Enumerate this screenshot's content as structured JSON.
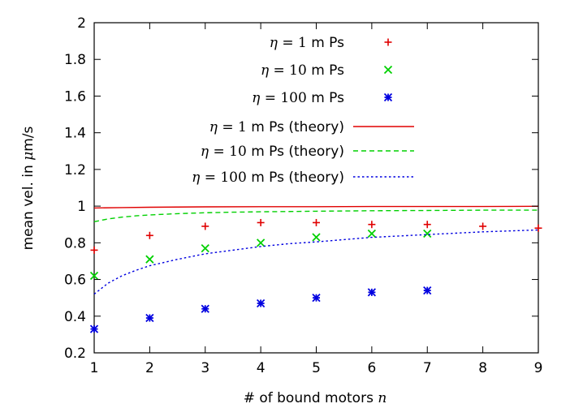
{
  "chart_data": {
    "type": "scatter",
    "xlabel": "# of bound motors n",
    "ylabel": "mean vel. in μm/s",
    "xlim": [
      1,
      9
    ],
    "ylim": [
      0.2,
      2
    ],
    "xticks": [
      1,
      2,
      3,
      4,
      5,
      6,
      7,
      8,
      9
    ],
    "yticks": [
      0.2,
      0.4,
      0.6,
      0.8,
      1,
      1.2,
      1.4,
      1.6,
      1.8,
      2
    ],
    "grid": false,
    "legend_position": "top-right",
    "colors": {
      "eta1": "#e00000",
      "eta10": "#00d000",
      "eta100": "#0000e0",
      "axis": "#000000"
    },
    "series": [
      {
        "name": "η = 1 m Ps",
        "kind": "points",
        "marker": "plus",
        "color": "#e00000",
        "x": [
          1,
          2,
          3,
          4,
          5,
          6,
          7,
          8,
          9
        ],
        "y": [
          0.76,
          0.84,
          0.89,
          0.91,
          0.91,
          0.9,
          0.9,
          0.89,
          0.88
        ]
      },
      {
        "name": "η = 10 m Ps",
        "kind": "points",
        "marker": "cross",
        "color": "#00d000",
        "x": [
          1,
          2,
          3,
          4,
          5,
          6,
          7
        ],
        "y": [
          0.62,
          0.71,
          0.77,
          0.8,
          0.83,
          0.85,
          0.85
        ]
      },
      {
        "name": "η = 100 m Ps",
        "kind": "points",
        "marker": "star",
        "color": "#0000e0",
        "x": [
          1,
          2,
          3,
          4,
          5,
          6,
          7
        ],
        "y": [
          0.33,
          0.39,
          0.44,
          0.47,
          0.5,
          0.53,
          0.54
        ]
      },
      {
        "name": "η = 1 m Ps (theory)",
        "kind": "line",
        "dash": "solid",
        "color": "#e00000",
        "x": [
          1,
          1.5,
          2,
          3,
          4,
          5,
          6,
          7,
          8,
          9
        ],
        "y": [
          0.99,
          0.992,
          0.994,
          0.996,
          0.997,
          0.997,
          0.998,
          0.998,
          0.998,
          0.999
        ]
      },
      {
        "name": "η = 10 m Ps (theory)",
        "kind": "line",
        "dash": "dashed",
        "color": "#00d000",
        "x": [
          1,
          1.25,
          1.5,
          1.75,
          2,
          2.5,
          3,
          3.5,
          4,
          5,
          6,
          7,
          8,
          9
        ],
        "y": [
          0.915,
          0.93,
          0.94,
          0.947,
          0.952,
          0.959,
          0.964,
          0.967,
          0.969,
          0.972,
          0.975,
          0.976,
          0.978,
          0.978
        ]
      },
      {
        "name": "η = 100 m Ps (theory)",
        "kind": "line",
        "dash": "dotted",
        "color": "#0000e0",
        "x": [
          1,
          1.25,
          1.5,
          1.75,
          2,
          2.5,
          3,
          3.5,
          4,
          4.5,
          5,
          6,
          7,
          8,
          9
        ],
        "y": [
          0.52,
          0.58,
          0.62,
          0.65,
          0.675,
          0.71,
          0.74,
          0.76,
          0.78,
          0.795,
          0.805,
          0.83,
          0.845,
          0.86,
          0.87
        ]
      }
    ]
  }
}
